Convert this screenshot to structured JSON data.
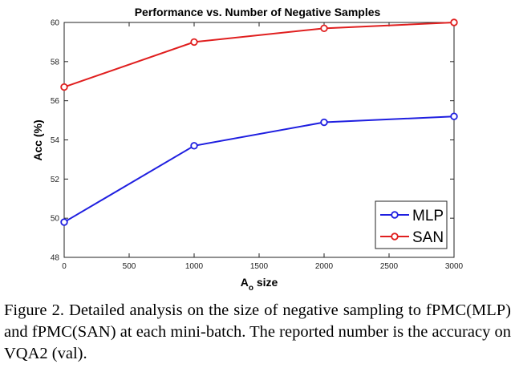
{
  "chart_data": {
    "type": "line",
    "title": "Performance vs. Number of Negative Samples",
    "xlabel_main": "A",
    "xlabel_sub": "o",
    "xlabel_rest": " size",
    "ylabel": "Acc (%)",
    "xlim": [
      0,
      3000
    ],
    "ylim": [
      48,
      60
    ],
    "xticks": [
      0,
      500,
      1000,
      1500,
      2000,
      2500,
      3000
    ],
    "yticks": [
      48,
      50,
      52,
      54,
      56,
      58,
      60
    ],
    "grid": false,
    "legend_position": "bottom-right",
    "series": [
      {
        "name": "MLP",
        "color": "#1f1fe0",
        "x": [
          0,
          1000,
          2000,
          3000
        ],
        "y": [
          49.8,
          53.7,
          54.9,
          55.2
        ]
      },
      {
        "name": "SAN",
        "color": "#e01f1f",
        "x": [
          0,
          1000,
          2000,
          3000
        ],
        "y": [
          56.7,
          59.0,
          59.7,
          60.0
        ]
      }
    ]
  },
  "caption": "Figure 2. Detailed analysis on the size of negative sampling to fPMC(MLP) and fPMC(SAN) at each mini-batch.  The reported number is the accuracy on VQA2 (val)."
}
